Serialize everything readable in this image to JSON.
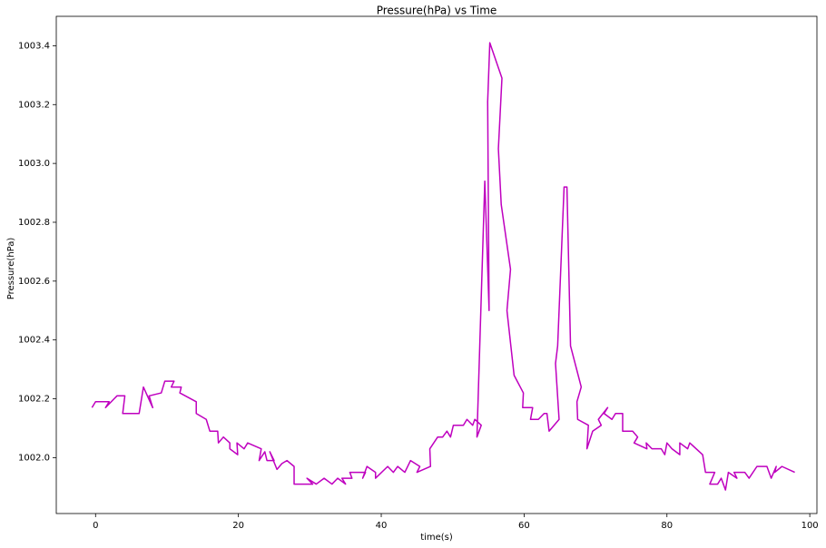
{
  "chart_data": {
    "type": "line",
    "title": "Pressure(hPa) vs Time",
    "x_label": "time(s)",
    "y_label": "Pressure(hPa)",
    "x": [
      -0.5,
      0,
      1.9,
      1.4,
      3,
      4.1,
      3.8,
      6.1,
      6.7,
      8,
      7.5,
      9.2,
      9.7,
      11,
      10.6,
      12,
      11.8,
      14.1,
      14.1,
      15.5,
      16,
      17.1,
      17.2,
      17.9,
      18.8,
      18.8,
      19.9,
      19.8,
      20.8,
      21.3,
      23.2,
      22.9,
      23.7,
      24,
      25,
      24.4,
      25.4,
      26.1,
      26.8,
      27.8,
      27.8,
      30.4,
      29.6,
      30.9,
      32,
      33.1,
      33.9,
      35,
      34.5,
      35.9,
      35.6,
      37.8,
      37.4,
      38,
      39.2,
      39.2,
      40.9,
      41.7,
      42.3,
      43.3,
      44.1,
      45.4,
      45,
      46.9,
      46.8,
      47.9,
      48.6,
      49.2,
      49.7,
      50.1,
      51.5,
      52,
      52.8,
      53.1,
      54,
      53.4,
      54.5,
      55.1,
      54.9,
      55.2,
      56.9,
      56.4,
      56.8,
      58.1,
      57.6,
      58.6,
      59.9,
      59.8,
      61.2,
      60.9,
      62,
      62.8,
      63.2,
      63.5,
      64.9,
      64.4,
      64.7,
      65.6,
      66,
      66.5,
      68,
      67.4,
      67.5,
      69,
      68.8,
      69.6,
      70.8,
      70.4,
      71.7,
      71.2,
      72.3,
      72.8,
      73.8,
      73.8,
      75.2,
      75.9,
      75.4,
      77.2,
      77.1,
      77.9,
      79.2,
      79.7,
      80,
      80.7,
      81.8,
      81.8,
      82.9,
      83.2,
      85,
      85.4,
      86.7,
      86,
      87.1,
      87.6,
      88.2,
      88.6,
      89.8,
      89.4,
      90.9,
      91.5,
      92.6,
      94,
      94.6,
      95.3,
      95.1,
      96.1,
      97.9
    ],
    "series": [
      {
        "name": "Pressure(hPa)",
        "color": "#bf00bf",
        "values": [
          1002.17,
          1002.19,
          1002.19,
          1002.17,
          1002.21,
          1002.21,
          1002.15,
          1002.15,
          1002.24,
          1002.17,
          1002.21,
          1002.22,
          1002.26,
          1002.26,
          1002.24,
          1002.24,
          1002.22,
          1002.19,
          1002.15,
          1002.13,
          1002.09,
          1002.09,
          1002.05,
          1002.07,
          1002.05,
          1002.03,
          1002.01,
          1002.05,
          1002.03,
          1002.05,
          1002.03,
          1001.99,
          1002.02,
          1001.99,
          1001.99,
          1002.02,
          1001.96,
          1001.98,
          1001.99,
          1001.97,
          1001.91,
          1001.91,
          1001.93,
          1001.91,
          1001.93,
          1001.91,
          1001.93,
          1001.91,
          1001.93,
          1001.93,
          1001.95,
          1001.95,
          1001.93,
          1001.97,
          1001.95,
          1001.93,
          1001.97,
          1001.95,
          1001.97,
          1001.95,
          1001.99,
          1001.97,
          1001.95,
          1001.97,
          1002.03,
          1002.07,
          1002.07,
          1002.09,
          1002.07,
          1002.11,
          1002.11,
          1002.13,
          1002.11,
          1002.13,
          1002.11,
          1002.07,
          1002.94,
          1002.5,
          1003.21,
          1003.41,
          1003.29,
          1003.05,
          1002.86,
          1002.64,
          1002.5,
          1002.28,
          1002.22,
          1002.17,
          1002.17,
          1002.13,
          1002.13,
          1002.15,
          1002.15,
          1002.09,
          1002.13,
          1002.32,
          1002.38,
          1002.92,
          1002.92,
          1002.38,
          1002.24,
          1002.19,
          1002.13,
          1002.11,
          1002.03,
          1002.09,
          1002.11,
          1002.13,
          1002.17,
          1002.15,
          1002.13,
          1002.15,
          1002.15,
          1002.09,
          1002.09,
          1002.07,
          1002.05,
          1002.03,
          1002.05,
          1002.03,
          1002.03,
          1002.01,
          1002.05,
          1002.03,
          1002.01,
          1002.05,
          1002.03,
          1002.05,
          1002.01,
          1001.95,
          1001.95,
          1001.91,
          1001.91,
          1001.93,
          1001.89,
          1001.95,
          1001.93,
          1001.95,
          1001.95,
          1001.93,
          1001.97,
          1001.97,
          1001.93,
          1001.97,
          1001.95,
          1001.97,
          1001.95
        ]
      }
    ],
    "xlim": [
      -5.5,
      101
    ],
    "xticks": [
      0,
      20,
      40,
      60,
      80,
      100
    ],
    "ylim": [
      1001.81,
      1003.5
    ],
    "yticks": [
      {
        "value": 1002.0,
        "label": "1002.0"
      },
      {
        "value": 1002.2,
        "label": "1002.2"
      },
      {
        "value": 1002.4,
        "label": "1002.4"
      },
      {
        "value": 1002.6,
        "label": "1002.6"
      },
      {
        "value": 1002.8,
        "label": "1002.8"
      },
      {
        "value": 1003.0,
        "label": "1003.0"
      },
      {
        "value": 1003.2,
        "label": "1003.2"
      },
      {
        "value": 1003.4,
        "label": "1003.4"
      }
    ],
    "grid": false
  }
}
